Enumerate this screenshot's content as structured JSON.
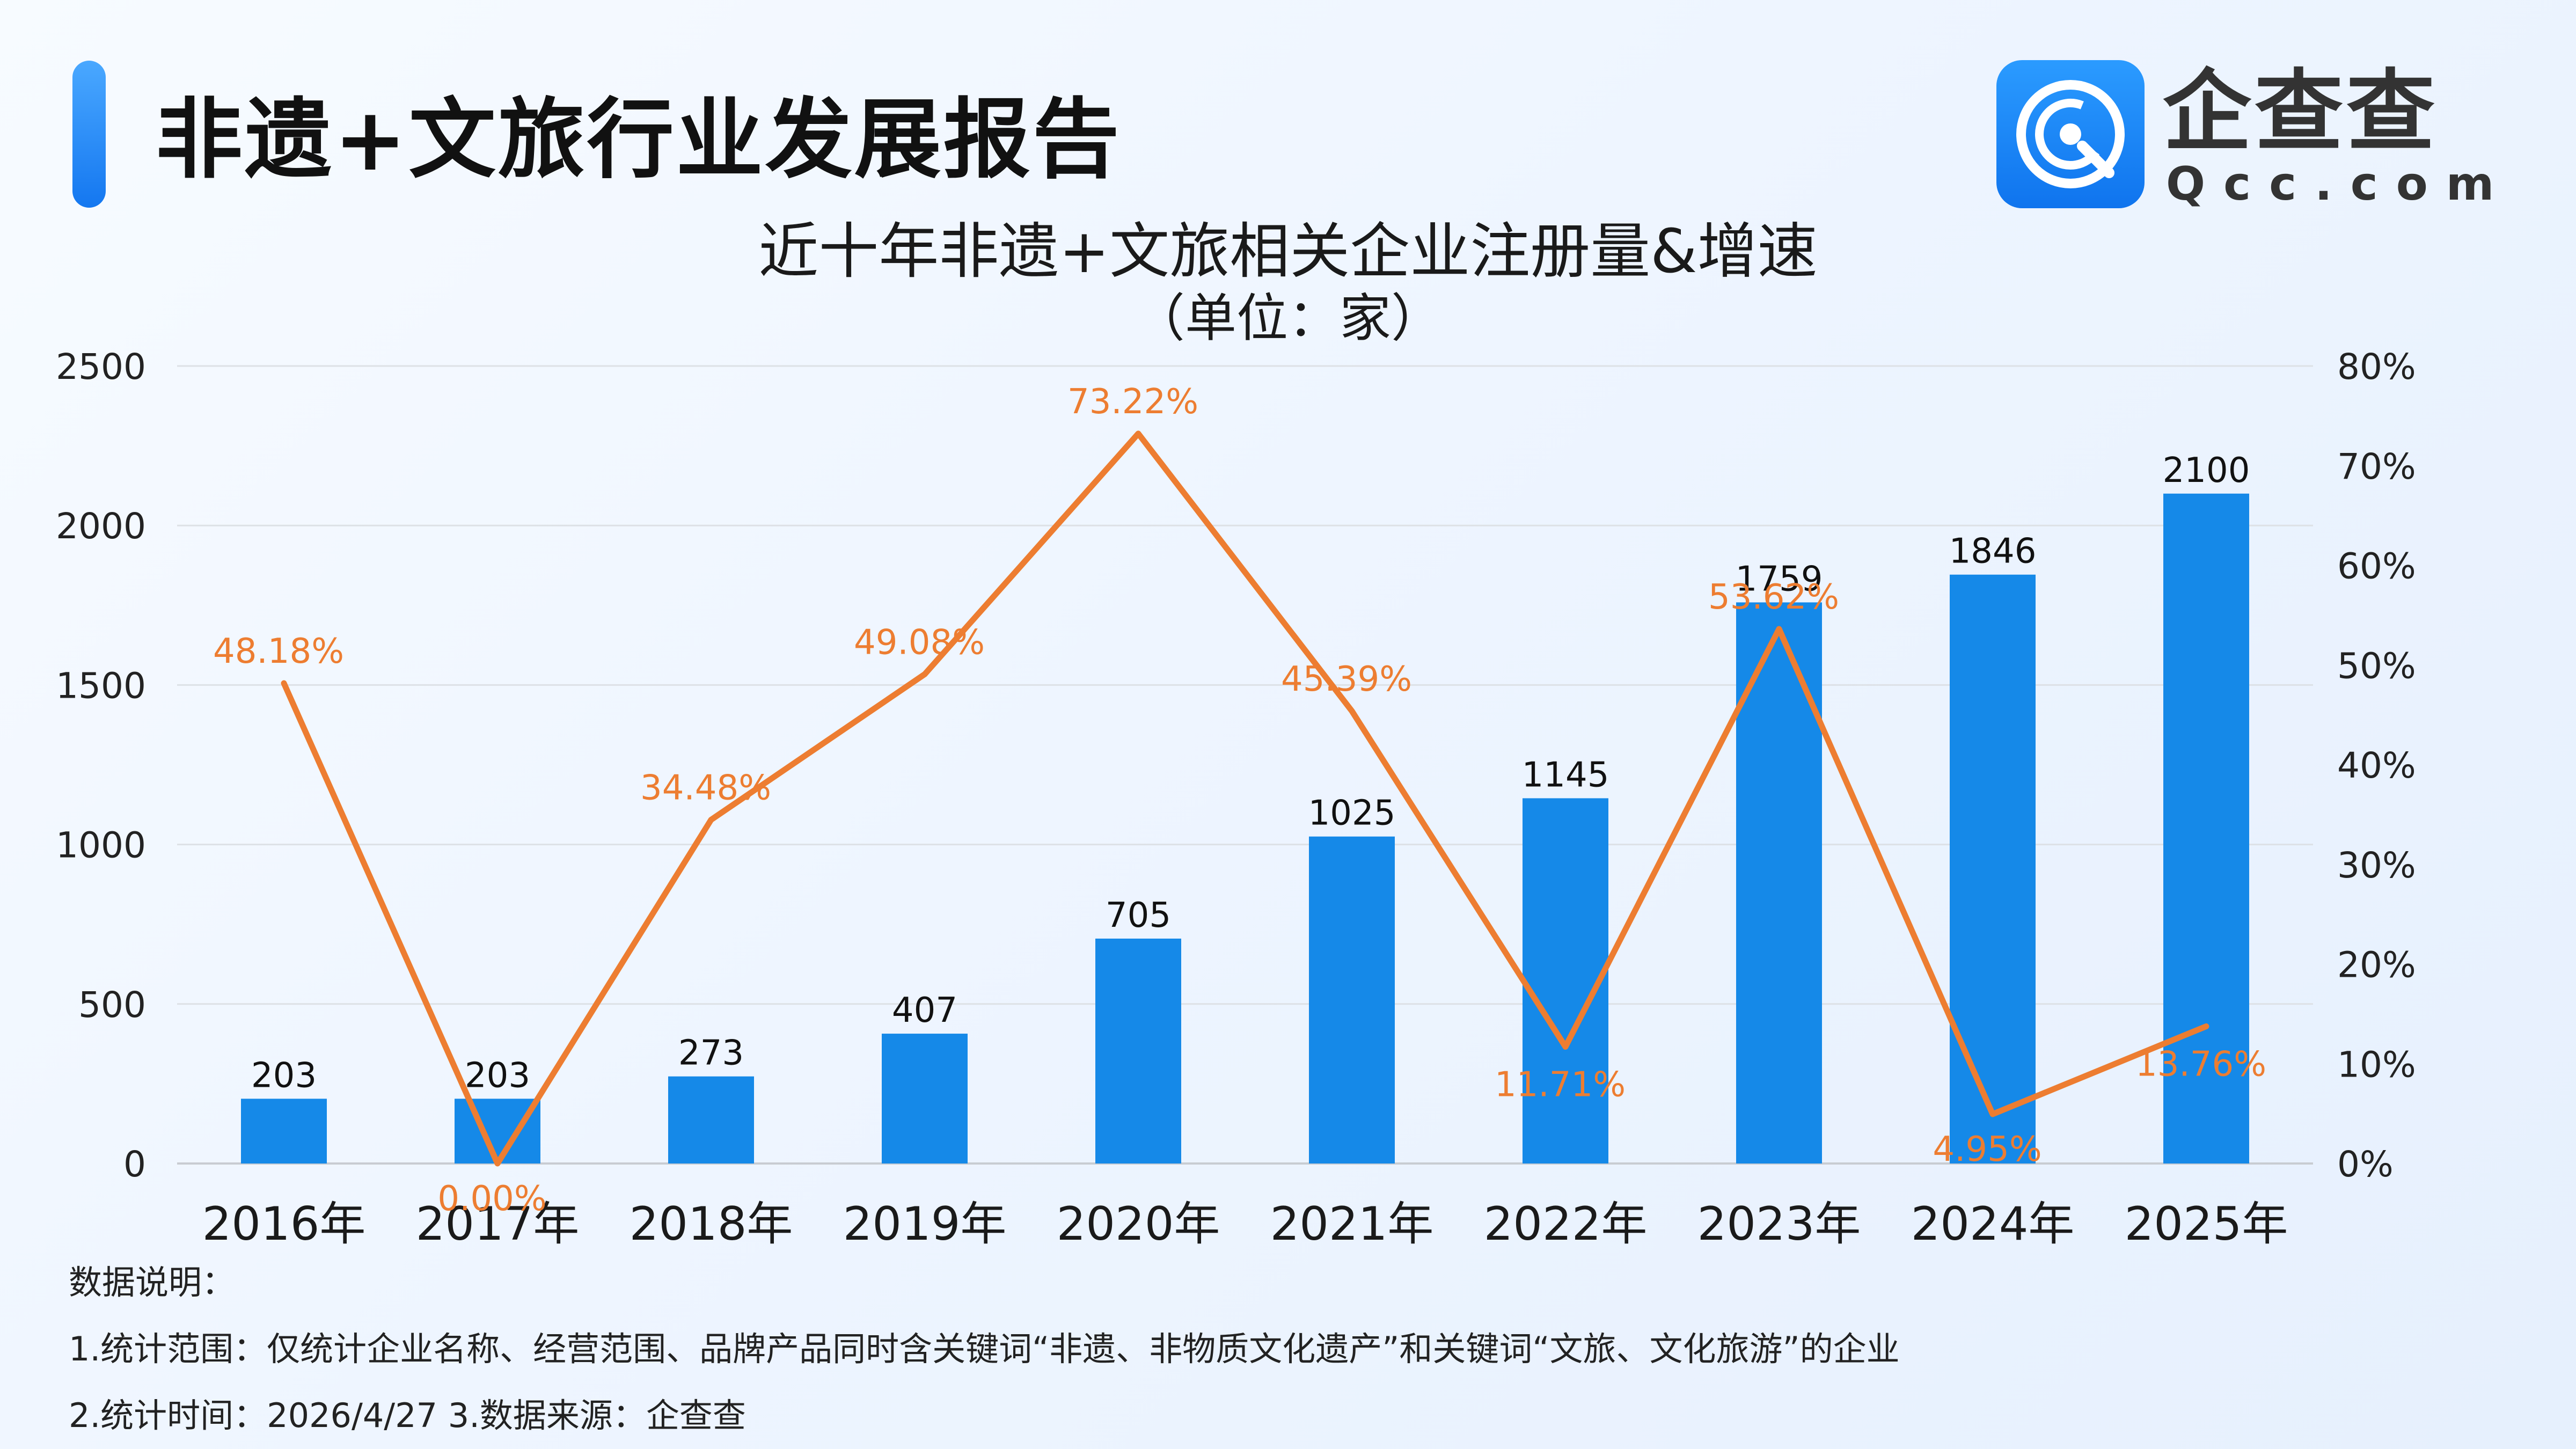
{
  "header": {
    "title": "非遗+文旅行业发展报告"
  },
  "logo": {
    "name": "企查查",
    "domain": "Qcc.com"
  },
  "chart_data": {
    "type": "bar",
    "title": "近十年非遗+文旅相关企业注册量&增速",
    "subtitle": "（单位：家）",
    "categories": [
      "2016年",
      "2017年",
      "2018年",
      "2019年",
      "2020年",
      "2021年",
      "2022年",
      "2023年",
      "2024年",
      "2025年"
    ],
    "series": [
      {
        "name": "",
        "type": "bar",
        "axis": "left",
        "color": "#1589e8",
        "values": [
          203,
          203,
          273,
          407,
          705,
          1025,
          1145,
          1759,
          1846,
          2100
        ],
        "labels": [
          "203",
          "203",
          "273",
          "407",
          "705",
          "1025",
          "1145",
          "1759",
          "1846",
          "2100"
        ]
      },
      {
        "name": "",
        "type": "line",
        "axis": "right",
        "color": "#ed7d31",
        "values": [
          48.18,
          0.0,
          34.48,
          49.08,
          73.22,
          45.39,
          11.71,
          53.62,
          4.95,
          13.76
        ],
        "labels": [
          "48.18%",
          "0.00%",
          "34.48%",
          "49.08%",
          "73.22%",
          "45.39%",
          "11.71%",
          "53.62%",
          "4.95%",
          "13.76%"
        ]
      }
    ],
    "y_left": {
      "lim": [
        0,
        2500
      ],
      "ticks": [
        "0",
        "500",
        "1000",
        "1500",
        "2000",
        "2500"
      ]
    },
    "y_right": {
      "lim": [
        0,
        80
      ],
      "ticks": [
        "0%",
        "10%",
        "20%",
        "30%",
        "40%",
        "50%",
        "60%",
        "70%",
        "80%"
      ]
    },
    "grid": true,
    "legend": "none"
  },
  "notes": {
    "heading": "数据说明：",
    "line1": "1.统计范围：仅统计企业名称、经营范围、品牌产品同时含关键词“非遗、非物质文化遗产”和关键词“文旅、文化旅游”的企业",
    "line2": "2.统计时间：2026/4/27  3.数据来源：企查查"
  },
  "colors": {
    "bar": "#1589e8",
    "line": "#ed7d31",
    "accent": "#1477f0"
  }
}
